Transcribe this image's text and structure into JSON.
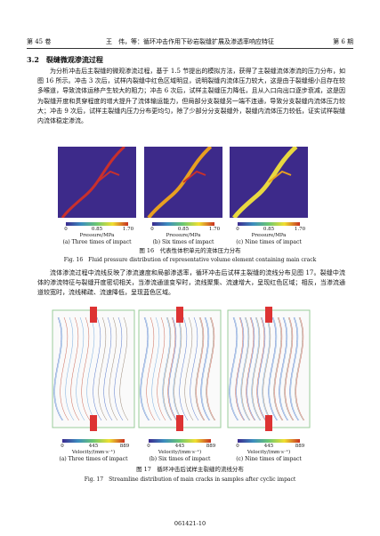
{
  "header": {
    "volume": "第 45 卷",
    "title": "王　伟，等：循环冲击作用下砂岩裂缝扩展及渗透率响应特征",
    "issue": "第 6 期"
  },
  "section_title": "3.2　裂缝微观渗流过程",
  "paragraphs": [
    "为分析冲击后主裂缝的微观渗流过程，基于 1.5 节提出的模拟方法，获得了主裂缝流体渗流的压力分布，如图 16 所示。冲击 3 次后，试样内裂缝中红色区域明显，说明裂缝内流体压力较大，这是由于裂缝细小且存在较多喉道，导致流体运移产生较大的阻力；冲击 6 次后，试样主裂缝压力降低，且从入口向出口逐步衰减，这是因为裂缝开度和贯穿程度的增大提升了流体输运能力，但局部分支裂缝另一端不连通，导致分支裂缝内流体压力较大；冲击 9 次后，试样主裂缝内压力分布更均匀，除了少部分分支裂缝外，裂缝内流体压力较低，证实试样裂缝内流体稳定渗流。",
    "流体渗流过程中流线反映了渗流速度和局部渗透率，循环冲击后试样主裂缝的流线分布见图 17。裂缝中流体的渗流特征与裂缝开度密切相关，当渗流通道变窄时，流线聚集、流速增大，呈现红色区域；相反，当渗流通道较宽时，流线稀疏、流速降低，呈现蓝色区域。"
  ],
  "figures": [
    {
      "panels": [
        {
          "colorbar_ticks": [
            "0",
            "0.85",
            "1.70"
          ],
          "colorbar_label": "Pressure/MPa",
          "caption": "(a) Three times of impact"
        },
        {
          "colorbar_ticks": [
            "0",
            "0.85",
            "1.70"
          ],
          "colorbar_label": "Pressure/MPa",
          "caption": "(b) Six times of impact"
        },
        {
          "colorbar_ticks": [
            "0",
            "0.85",
            "1.70"
          ],
          "colorbar_label": "Pressure/MPa",
          "caption": "(c) Nine times of impact"
        }
      ],
      "caption_zh": "图 16　代表性体积单元的流体压力分布",
      "caption_en": "Fig. 16　Fluid pressure distribution of representative volume element containing main crack"
    },
    {
      "panels": [
        {
          "colorbar_ticks": [
            "0",
            "445",
            "889"
          ],
          "colorbar_label": "Velocity/(mm·s⁻¹)",
          "caption": "(a) Three times of impact"
        },
        {
          "colorbar_ticks": [
            "0",
            "445",
            "889"
          ],
          "colorbar_label": "Velocity/(mm·s⁻¹)",
          "caption": "(b) Six times of impact"
        },
        {
          "colorbar_ticks": [
            "0",
            "445",
            "889"
          ],
          "colorbar_label": "Velocity/(mm·s⁻¹)",
          "caption": "(c) Nine times of impact"
        }
      ],
      "caption_zh": "图 17　循环冲击后试样主裂缝的流线分布",
      "caption_en": "Fig. 17　Streamline distribution of main cracks in samples after cyclic impact"
    }
  ],
  "footer": "061421-10"
}
